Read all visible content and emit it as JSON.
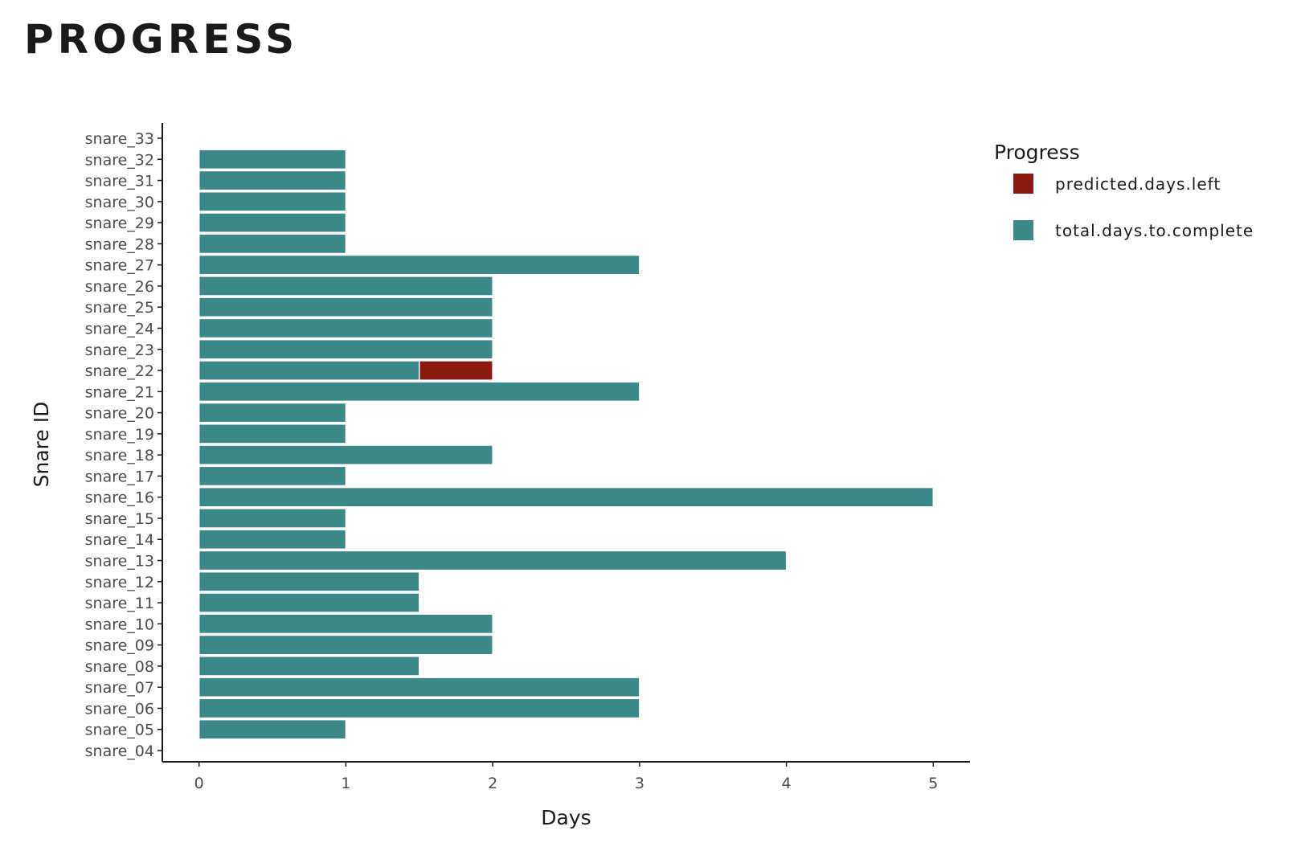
{
  "page": {
    "title": "PROGRESS"
  },
  "colors": {
    "total": "#3b8888",
    "predicted": "#8b1a10",
    "axis": "#1a1a1a",
    "bar_border": "#ffffff"
  },
  "chart_data": {
    "type": "bar",
    "orientation": "horizontal",
    "stacked": true,
    "xlabel": "Days",
    "ylabel": "Snare ID",
    "xlim": [
      -0.25,
      5.25
    ],
    "xticks": [
      0,
      1,
      2,
      3,
      4,
      5
    ],
    "grid": false,
    "legend_position": "right",
    "legend": {
      "title": "Progress",
      "entries": [
        {
          "key": "predicted",
          "label": "predicted.days.left"
        },
        {
          "key": "total",
          "label": "total.days.to.complete"
        }
      ]
    },
    "categories": [
      "snare_04",
      "snare_05",
      "snare_06",
      "snare_07",
      "snare_08",
      "snare_09",
      "snare_10",
      "snare_11",
      "snare_12",
      "snare_13",
      "snare_14",
      "snare_15",
      "snare_16",
      "snare_17",
      "snare_18",
      "snare_19",
      "snare_20",
      "snare_21",
      "snare_22",
      "snare_23",
      "snare_24",
      "snare_25",
      "snare_26",
      "snare_27",
      "snare_28",
      "snare_29",
      "snare_30",
      "snare_31",
      "snare_32",
      "snare_33"
    ],
    "series": [
      {
        "name": "total.days.to.complete",
        "key": "total",
        "values": [
          0,
          1,
          3,
          3,
          1.5,
          2,
          2,
          1.5,
          1.5,
          4,
          1,
          1,
          5,
          1,
          2,
          1,
          1,
          3,
          1.5,
          2,
          2,
          2,
          2,
          3,
          1,
          1,
          1,
          1,
          1,
          0
        ]
      },
      {
        "name": "predicted.days.left",
        "key": "predicted",
        "values": [
          0,
          0,
          0,
          0,
          0,
          0,
          0,
          0,
          0,
          0,
          0,
          0,
          0,
          0,
          0,
          0,
          0,
          0,
          0.5,
          0,
          0,
          0,
          0,
          0,
          0,
          0,
          0,
          0,
          0,
          0
        ]
      }
    ]
  }
}
